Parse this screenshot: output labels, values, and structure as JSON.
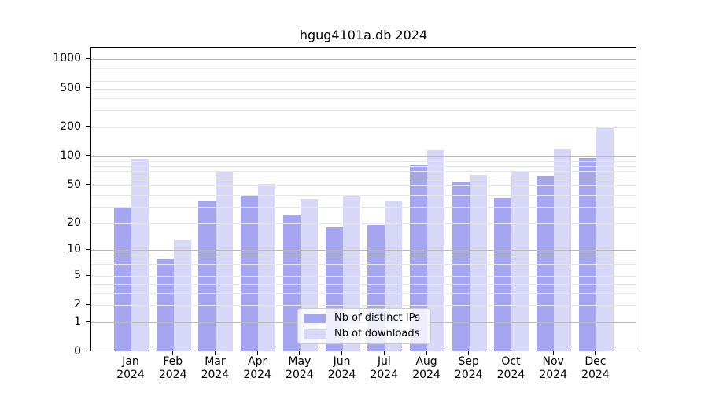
{
  "figure": {
    "title": "hgug4101a.db 2024"
  },
  "chart_data": {
    "type": "bar",
    "title": "hgug4101a.db 2024",
    "categories": [
      "Jan",
      "Feb",
      "Mar",
      "Apr",
      "May",
      "Jun",
      "Jul",
      "Aug",
      "Sep",
      "Oct",
      "Nov",
      "Dec"
    ],
    "year_label": "2024",
    "series": [
      {
        "name": "Nb of distinct IPs",
        "color": "#a5a5f0",
        "values": [
          30,
          8,
          34,
          38,
          24,
          18,
          19,
          82,
          55,
          37,
          63,
          97
        ]
      },
      {
        "name": "Nb of downloads",
        "color": "#d7d7f8",
        "values": [
          94,
          13,
          68,
          52,
          36,
          38,
          34,
          116,
          64,
          68,
          120,
          205
        ]
      }
    ],
    "xlabel": "",
    "ylabel": "",
    "y_axis": {
      "scale": "log10(value+1)",
      "tick_values": [
        0,
        1,
        2,
        5,
        10,
        20,
        50,
        100,
        200,
        500,
        1000
      ],
      "major_grid_values": [
        1,
        10,
        100,
        1000
      ],
      "minor_grid_values": [
        2,
        3,
        4,
        5,
        6,
        7,
        8,
        9,
        20,
        30,
        40,
        50,
        60,
        70,
        80,
        90,
        200,
        300,
        400,
        500,
        600,
        700,
        800,
        900
      ],
      "ylim_top_approx": 1300
    },
    "legend": {
      "position": "lower center",
      "entries": [
        "Nb of distinct IPs",
        "Nb of downloads"
      ]
    },
    "colors": {
      "bar_distinct_ips": "#a5a5f0",
      "bar_downloads": "#d7d7f8",
      "major_grid": "#b9b9b9",
      "minor_grid": "#e7e7e7",
      "spine": "#000000"
    },
    "grid": true
  }
}
